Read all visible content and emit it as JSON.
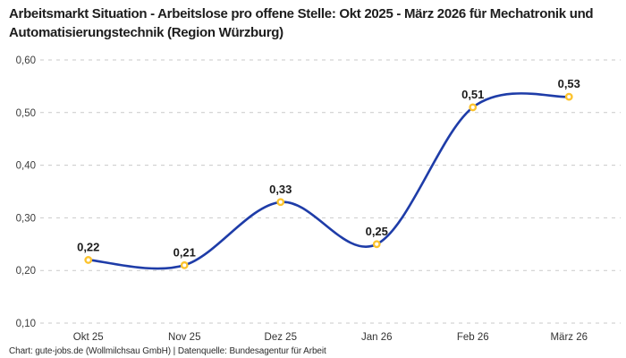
{
  "title": "Arbeitsmarkt Situation - Arbeitslose pro offene Stelle: Okt 2025 - März 2026 für Mechatronik und Automatisierungstechnik (Region Würzburg)",
  "footer": "Chart: gute-jobs.de (Wollmilchsau GmbH) | Datenquelle: Bundesagentur für Arbeit",
  "chart_data": {
    "type": "line",
    "categories": [
      "Okt 25",
      "Nov 25",
      "Dez 25",
      "Jan 26",
      "Feb 26",
      "März 26"
    ],
    "values": [
      0.22,
      0.21,
      0.33,
      0.25,
      0.51,
      0.53
    ],
    "value_labels": [
      "0,22",
      "0,21",
      "0,33",
      "0,25",
      "0,51",
      "0,53"
    ],
    "series_name": "Arbeitslose pro offene Stelle",
    "y_ticks": [
      0.1,
      0.2,
      0.3,
      0.4,
      0.5,
      0.6
    ],
    "y_tick_labels": [
      "0,10",
      "0,20",
      "0,30",
      "0,40",
      "0,50",
      "0,60"
    ],
    "ylim": [
      0.1,
      0.6
    ],
    "grid": "horizontal-dashed",
    "legend": "none",
    "colors": {
      "line": "#1e3ca8",
      "marker_ring": "#fcc32c",
      "marker_fill": "#ffffff",
      "gridline": "#c9c9c9",
      "tick_label": "#3c3c3c",
      "point_label": "#1b1b1b"
    }
  }
}
